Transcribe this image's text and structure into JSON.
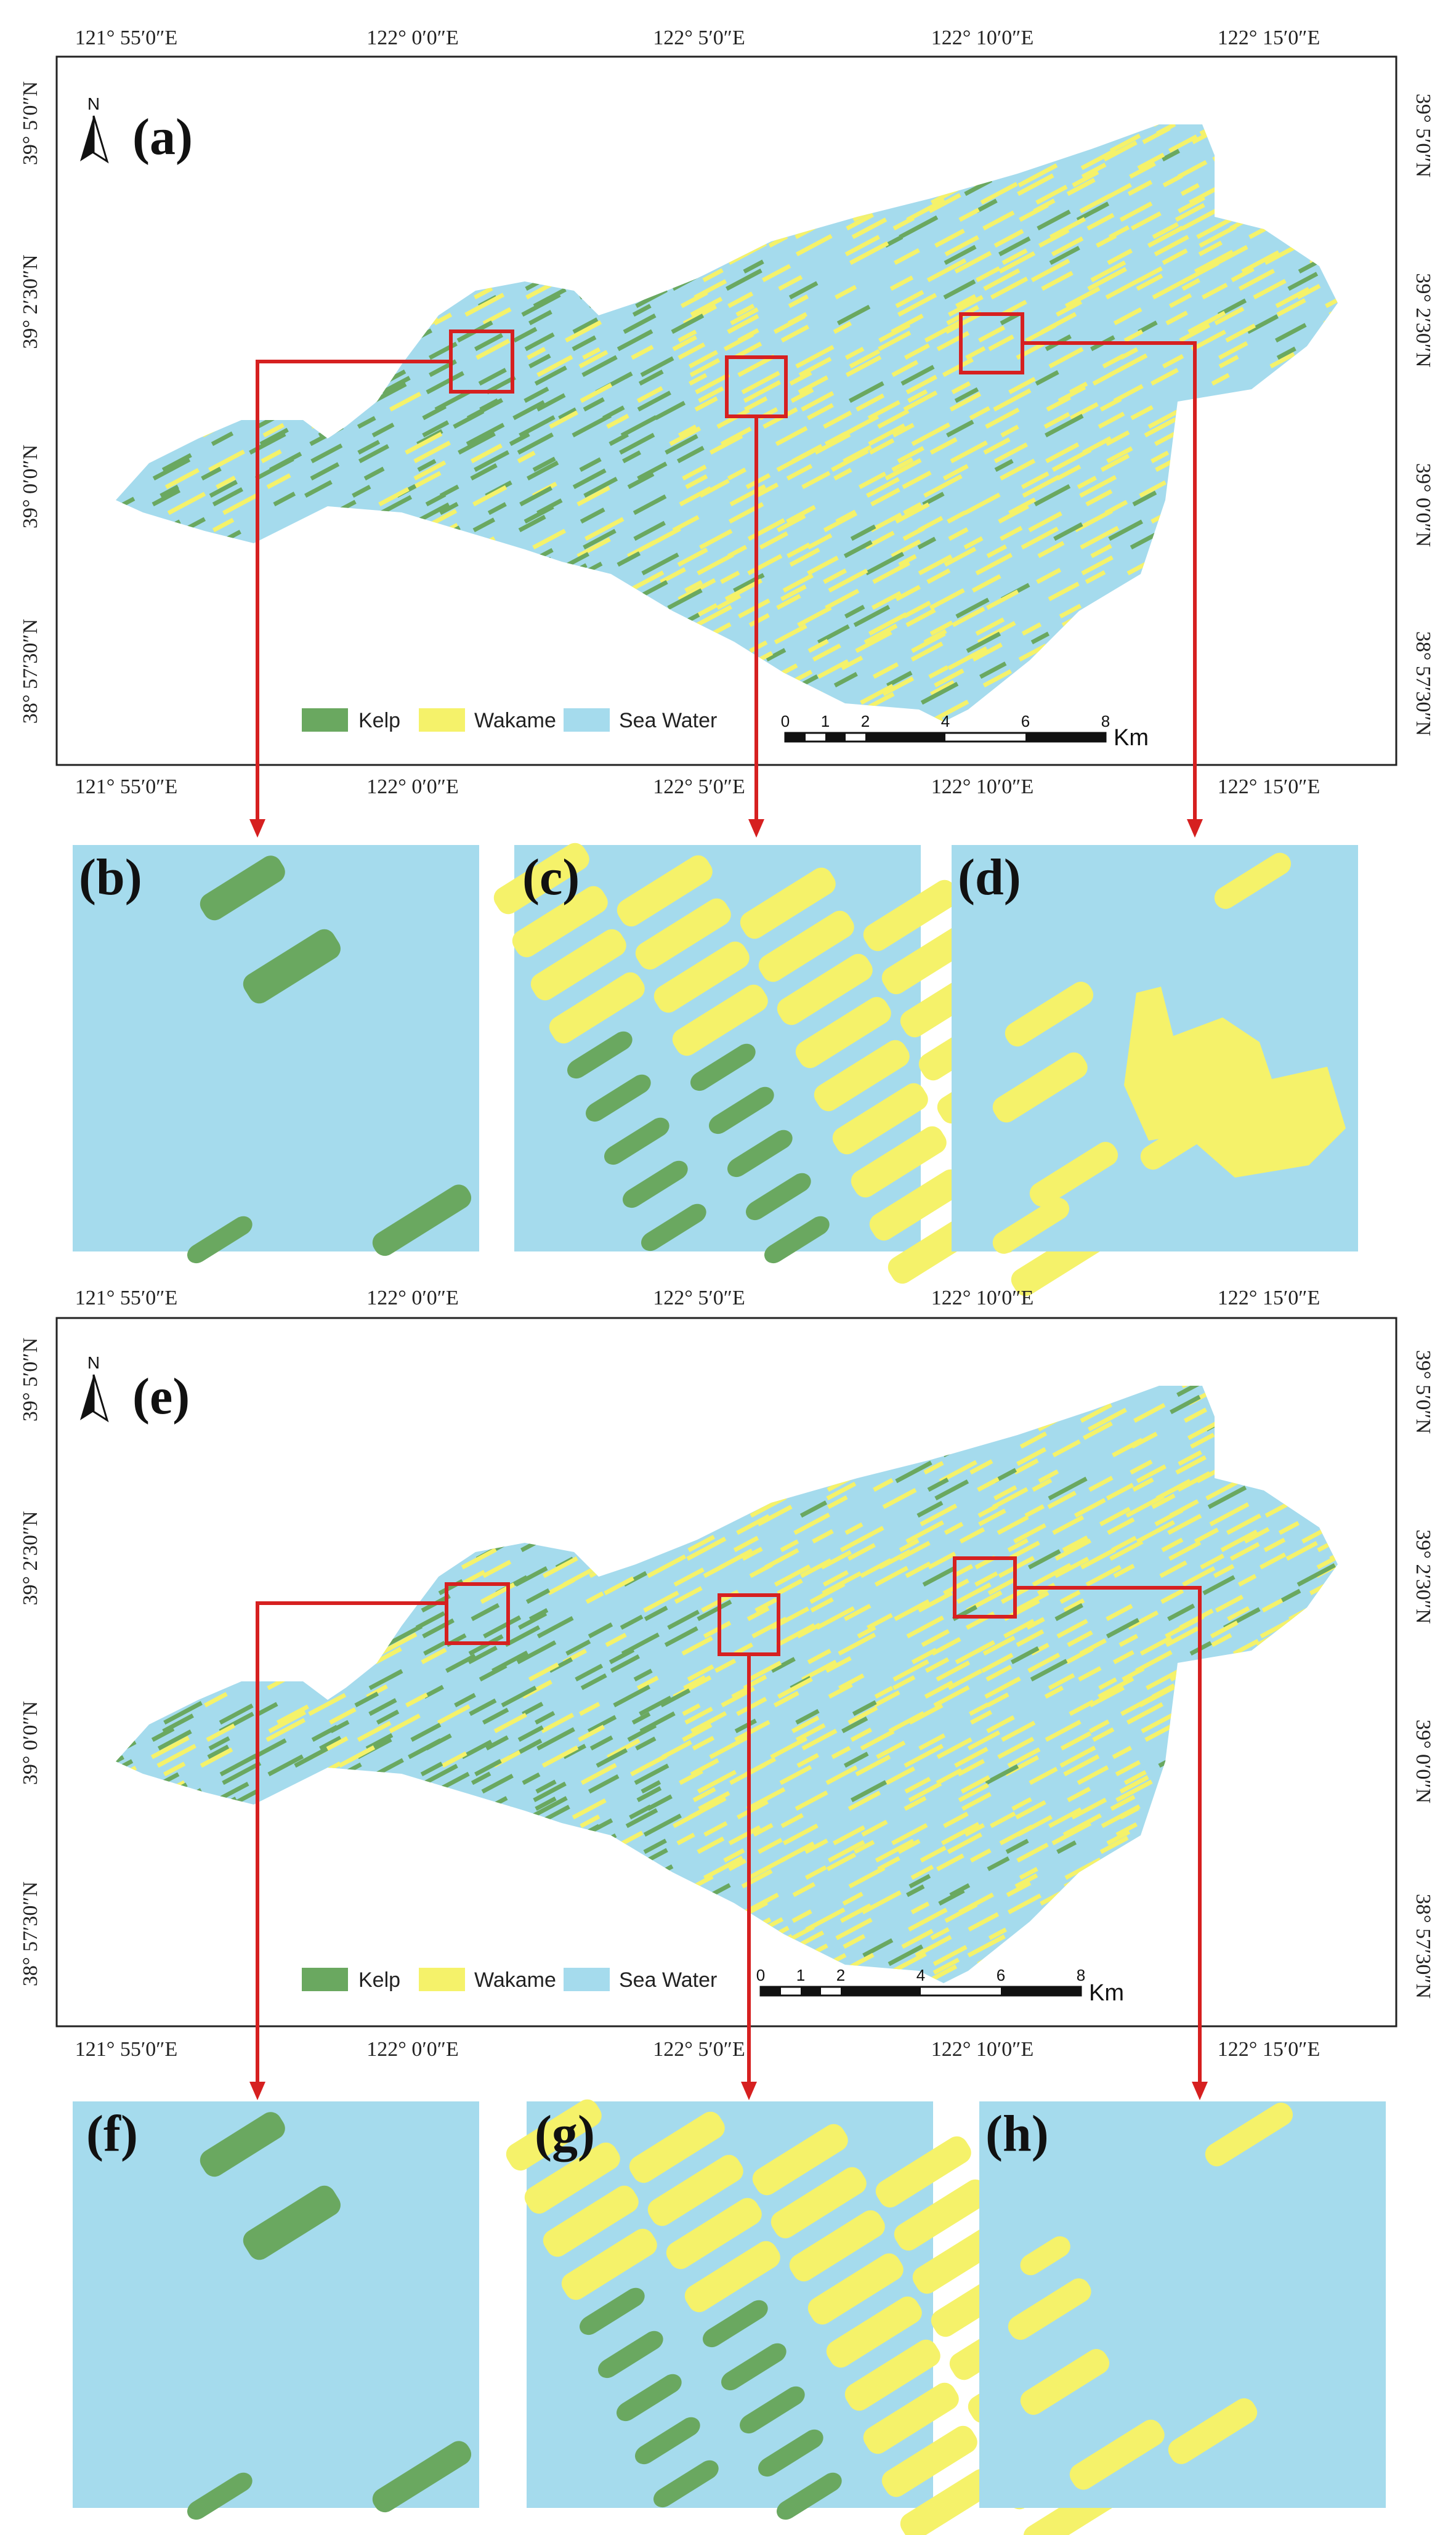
{
  "colors": {
    "kelp": "#6aa860",
    "wakame": "#f5f26a",
    "sea": "#a5dbed",
    "callout": "#d62020",
    "frame": "#222222"
  },
  "maps": [
    {
      "label": "(a)",
      "north": "N",
      "top_ticks": [
        "121° 55′0″E",
        "122° 0′0″E",
        "122° 5′0″E",
        "122° 10′0″E",
        "122° 15′0″E"
      ],
      "bottom_ticks": [
        "121° 55′0″E",
        "122° 0′0″E",
        "122° 5′0″E",
        "122° 10′0″E",
        "122° 15′0″E"
      ],
      "left_ticks": [
        "39° 5′0″N",
        "39° 2′30″N",
        "39° 0′0″N",
        "38° 57′30″N"
      ],
      "right_ticks": [
        "39° 5′0″N",
        "39° 2′30″N",
        "39° 0′0″N",
        "38° 57′30″N"
      ],
      "legend": {
        "kelp": "Kelp",
        "wakame": "Wakame",
        "sea": "Sea Water"
      },
      "scale": {
        "labels": [
          "0",
          "1",
          "2",
          "4",
          "6",
          "8"
        ],
        "unit": "Km"
      }
    },
    {
      "label": "(e)",
      "north": "N",
      "top_ticks": [
        "121° 55′0″E",
        "122° 0′0″E",
        "122° 5′0″E",
        "122° 10′0″E",
        "122° 15′0″E"
      ],
      "bottom_ticks": [
        "121° 55′0″E",
        "122° 0′0″E",
        "122° 5′0″E",
        "122° 10′0″E",
        "122° 15′0″E"
      ],
      "left_ticks": [
        "39° 5′0″N",
        "39° 2′30″N",
        "39° 0′0″N",
        "38° 57′30″N"
      ],
      "right_ticks": [
        "39° 5′0″N",
        "39° 2′30″N",
        "39° 0′0″N",
        "38° 57′30″N"
      ],
      "legend": {
        "kelp": "Kelp",
        "wakame": "Wakame",
        "sea": "Sea Water"
      },
      "scale": {
        "labels": [
          "0",
          "1",
          "2",
          "4",
          "6",
          "8"
        ],
        "unit": "Km"
      }
    }
  ],
  "insets": [
    {
      "label": "(b)",
      "content": "kelp-sparse"
    },
    {
      "label": "(c)",
      "content": "mixed"
    },
    {
      "label": "(d)",
      "content": "wakame-blob"
    },
    {
      "label": "(f)",
      "content": "kelp-sparse"
    },
    {
      "label": "(g)",
      "content": "mixed"
    },
    {
      "label": "(h)",
      "content": "wakame-sparse"
    }
  ]
}
